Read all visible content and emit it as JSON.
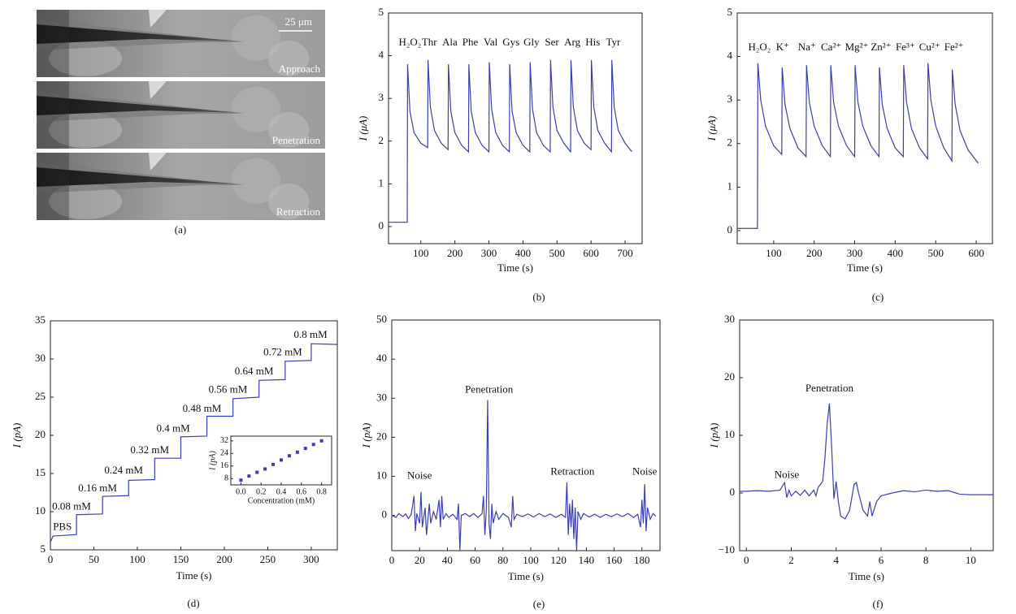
{
  "image_panel": {
    "labels": [
      "25 μm",
      "Approach",
      "Penetration",
      "Retraction"
    ],
    "caption": "(a)"
  },
  "chart_data": [
    {
      "type": "line",
      "caption": "(b)",
      "x_label": "Time (s)",
      "y_label": "I (μA)",
      "color": "#3a3fb0",
      "xlim": [
        5,
        750
      ],
      "ylim": [
        -0.4,
        5
      ],
      "xticks": [
        100,
        200,
        300,
        400,
        500,
        600,
        700
      ],
      "yticks": [
        0,
        1,
        2,
        3,
        4,
        5
      ],
      "x": [
        5,
        58,
        60,
        61,
        68,
        80,
        100,
        120,
        121,
        128,
        140,
        160,
        180,
        181,
        188,
        200,
        220,
        240,
        241,
        248,
        260,
        280,
        300,
        301,
        308,
        320,
        340,
        360,
        361,
        368,
        380,
        400,
        420,
        421,
        428,
        440,
        460,
        480,
        481,
        488,
        500,
        520,
        540,
        541,
        548,
        560,
        580,
        600,
        601,
        608,
        620,
        640,
        660,
        661,
        668,
        680,
        700,
        720
      ],
      "values": [
        0.1,
        0.1,
        0.1,
        3.8,
        2.7,
        2.2,
        1.95,
        1.85,
        3.9,
        2.8,
        2.25,
        1.95,
        1.8,
        3.8,
        2.7,
        2.2,
        1.9,
        1.75,
        3.8,
        2.7,
        2.2,
        1.9,
        1.75,
        3.85,
        2.75,
        2.2,
        1.9,
        1.75,
        3.8,
        2.7,
        2.2,
        1.9,
        1.75,
        3.85,
        2.75,
        2.2,
        1.9,
        1.75,
        3.9,
        2.8,
        2.25,
        1.95,
        1.75,
        3.9,
        2.8,
        2.25,
        1.95,
        1.8,
        3.9,
        2.8,
        2.25,
        1.95,
        1.75,
        3.9,
        2.8,
        2.25,
        1.95,
        1.75
      ],
      "annotations": [
        {
          "text": "H₂O₂",
          "x": 68,
          "y": 4.3
        },
        {
          "text": "Thr",
          "x": 125,
          "y": 4.3
        },
        {
          "text": "Ala",
          "x": 185,
          "y": 4.3
        },
        {
          "text": "Phe",
          "x": 245,
          "y": 4.3
        },
        {
          "text": "Val",
          "x": 305,
          "y": 4.3
        },
        {
          "text": "Gys",
          "x": 365,
          "y": 4.3
        },
        {
          "text": "Gly",
          "x": 425,
          "y": 4.3
        },
        {
          "text": "Ser",
          "x": 485,
          "y": 4.3
        },
        {
          "text": "Arg",
          "x": 545,
          "y": 4.3
        },
        {
          "text": "His",
          "x": 605,
          "y": 4.3
        },
        {
          "text": "Tyr",
          "x": 665,
          "y": 4.3
        }
      ]
    },
    {
      "type": "line",
      "caption": "(c)",
      "x_label": "Time (s)",
      "y_label": "I (μA)",
      "color": "#3a3fb0",
      "xlim": [
        10,
        640
      ],
      "ylim": [
        -0.3,
        5
      ],
      "xticks": [
        100,
        200,
        300,
        400,
        500,
        600
      ],
      "yticks": [
        0,
        1,
        2,
        3,
        4,
        5
      ],
      "x": [
        10,
        58,
        60,
        61,
        68,
        80,
        100,
        120,
        121,
        128,
        140,
        160,
        180,
        181,
        188,
        200,
        220,
        240,
        241,
        248,
        260,
        280,
        300,
        301,
        308,
        320,
        340,
        360,
        361,
        368,
        380,
        400,
        420,
        421,
        428,
        440,
        460,
        480,
        481,
        488,
        500,
        520,
        540,
        541,
        548,
        560,
        580,
        605
      ],
      "values": [
        0.05,
        0.05,
        0.05,
        3.85,
        3.0,
        2.4,
        1.95,
        1.75,
        3.75,
        2.9,
        2.35,
        1.9,
        1.7,
        3.8,
        2.95,
        2.4,
        1.95,
        1.7,
        3.8,
        2.95,
        2.4,
        1.95,
        1.7,
        3.8,
        2.95,
        2.4,
        1.95,
        1.7,
        3.75,
        2.9,
        2.35,
        1.9,
        1.7,
        3.8,
        2.95,
        2.35,
        1.9,
        1.65,
        3.85,
        3.0,
        2.4,
        1.9,
        1.6,
        3.7,
        2.9,
        2.3,
        1.85,
        1.55
      ],
      "annotations": [
        {
          "text": "H₂O₂",
          "x": 65,
          "y": 4.2
        },
        {
          "text": "K⁺",
          "x": 122,
          "y": 4.2
        },
        {
          "text": "Na⁺",
          "x": 182,
          "y": 4.2
        },
        {
          "text": "Ca²⁺",
          "x": 242,
          "y": 4.2
        },
        {
          "text": "Mg²⁺",
          "x": 305,
          "y": 4.2
        },
        {
          "text": "Zn²⁺",
          "x": 365,
          "y": 4.2
        },
        {
          "text": "Fe³⁺",
          "x": 425,
          "y": 4.2
        },
        {
          "text": "Cu²⁺",
          "x": 485,
          "y": 4.2
        },
        {
          "text": "Fe²⁺",
          "x": 545,
          "y": 4.2
        }
      ]
    },
    {
      "type": "line",
      "caption": "(d)",
      "x_label": "Time (s)",
      "y_label": "I (pA)",
      "color": "#3a3fb0",
      "xlim": [
        0,
        330
      ],
      "ylim": [
        5,
        35
      ],
      "xticks": [
        0,
        50,
        100,
        150,
        200,
        250,
        300
      ],
      "yticks": [
        5,
        10,
        15,
        20,
        25,
        30,
        35
      ],
      "x": [
        0,
        3,
        30,
        30,
        60,
        60,
        90,
        90,
        120,
        120,
        150,
        150,
        180,
        180,
        210,
        210,
        240,
        240,
        270,
        270,
        300,
        300,
        330
      ],
      "values": [
        6,
        6.8,
        7,
        9.6,
        9.7,
        12,
        12.1,
        14.1,
        14.2,
        17,
        17,
        19.8,
        19.9,
        22.5,
        22.5,
        24.8,
        25,
        27.2,
        27.3,
        29.7,
        29.8,
        32,
        31.9
      ],
      "annotations": [
        {
          "text": "PBS",
          "x": 3,
          "y": 7.9
        },
        {
          "text": "0.08 mM",
          "x": 2,
          "y": 10.6
        },
        {
          "text": "0.16 mM",
          "x": 32,
          "y": 13
        },
        {
          "text": "0.24 mM",
          "x": 62,
          "y": 15.3
        },
        {
          "text": "0.32 mM",
          "x": 92,
          "y": 18
        },
        {
          "text": "0.4 mM",
          "x": 122,
          "y": 20.8
        },
        {
          "text": "0.48 mM",
          "x": 152,
          "y": 23.4
        },
        {
          "text": "0.56 mM",
          "x": 182,
          "y": 25.9
        },
        {
          "text": "0.64 mM",
          "x": 212,
          "y": 28.3
        },
        {
          "text": "0.72 mM",
          "x": 245,
          "y": 30.8
        },
        {
          "text": "0.8 mM",
          "x": 280,
          "y": 33.1
        }
      ]
    },
    {
      "type": "scatter",
      "inset": true,
      "x_label": "Concentration (mM)",
      "y_label": "I (pA)",
      "color": "#3a3fb0",
      "xlim": [
        -0.1,
        0.9
      ],
      "ylim": [
        4,
        35
      ],
      "xticks": [
        {
          "value": 0,
          "label": "0.0"
        },
        {
          "value": 0.2,
          "label": "0.2"
        },
        {
          "value": 0.4,
          "label": "0.4"
        },
        {
          "value": 0.6,
          "label": "0.6"
        },
        {
          "value": 0.8,
          "label": "0.8"
        }
      ],
      "yticks": [
        8,
        16,
        24,
        32
      ],
      "x": [
        0,
        0.08,
        0.16,
        0.24,
        0.32,
        0.4,
        0.48,
        0.56,
        0.64,
        0.72,
        0.8
      ],
      "values": [
        7,
        9.6,
        12,
        14.1,
        17,
        19.8,
        22.5,
        24.8,
        27.2,
        29.7,
        32
      ]
    },
    {
      "type": "line",
      "caption": "(e)",
      "x_label": "Time (s)",
      "y_label": "I (pA)",
      "color": "#3a3fb0",
      "xlim": [
        0,
        193
      ],
      "ylim": [
        -9,
        50
      ],
      "xticks": [
        0,
        20,
        40,
        60,
        80,
        100,
        120,
        140,
        160,
        180
      ],
      "yticks": [
        0,
        10,
        20,
        30,
        40,
        50
      ],
      "x": [
        0,
        3,
        5,
        8,
        10,
        12,
        14,
        16,
        17,
        18,
        20,
        21,
        22,
        24,
        25,
        27,
        28,
        30,
        32,
        34,
        35,
        36,
        37,
        39,
        41,
        44,
        47,
        48,
        49,
        50,
        53,
        56,
        59,
        62,
        65,
        66,
        67,
        68,
        69,
        70,
        71,
        72,
        73,
        75,
        77,
        80,
        84,
        86,
        87,
        88,
        90,
        94,
        98,
        102,
        106,
        110,
        114,
        118,
        122,
        125,
        126,
        127,
        128,
        129,
        130,
        131,
        132,
        133,
        134,
        136,
        138,
        142,
        146,
        150,
        154,
        158,
        162,
        166,
        170,
        174,
        177,
        179,
        180,
        181,
        182,
        183,
        184,
        186,
        188,
        190
      ],
      "values": [
        0,
        -0.5,
        0.5,
        -0.3,
        0.4,
        -0.8,
        0.3,
        5,
        -4,
        0.5,
        -2,
        6,
        -3,
        2,
        -5,
        3,
        -2,
        1,
        -1,
        4,
        -3,
        5,
        -1,
        0.5,
        -0.5,
        0.3,
        -1,
        3,
        -9,
        0,
        0.5,
        -0.3,
        0.5,
        -0.5,
        0.5,
        5,
        -5,
        1,
        29.5,
        -2,
        -6,
        3,
        -2,
        1,
        -1,
        0.5,
        -0.5,
        -3,
        5,
        -1,
        0.3,
        -0.3,
        0.4,
        -0.4,
        0.5,
        -0.3,
        0.4,
        -0.5,
        0.3,
        -0.5,
        8.5,
        -5,
        3,
        -3,
        4,
        -6,
        2,
        -9,
        1,
        -1,
        0.5,
        -0.4,
        0.3,
        -0.5,
        0.3,
        -0.3,
        0.4,
        -0.3,
        0.5,
        -0.5,
        0.3,
        -3,
        4,
        -2,
        8,
        -4,
        2,
        -1,
        0.5,
        -0.2
      ],
      "annotations": [
        {
          "text": "Noise",
          "x": 20,
          "y": 10
        },
        {
          "text": "Penetration",
          "x": 70,
          "y": 32
        },
        {
          "text": "Retraction",
          "x": 130,
          "y": 11
        },
        {
          "text": "Noise",
          "x": 182,
          "y": 11
        }
      ]
    },
    {
      "type": "line",
      "caption": "(f)",
      "x_label": "Time (s)",
      "y_label": "I (pA)",
      "color": "#3a3fb0",
      "xlim": [
        -0.3,
        11
      ],
      "ylim": [
        -10,
        30
      ],
      "xticks": [
        0,
        2,
        4,
        6,
        8,
        10
      ],
      "yticks": [
        {
          "value": -10,
          "label": "−10"
        },
        0,
        10,
        20,
        30
      ],
      "x": [
        -0.3,
        0,
        0.5,
        1,
        1.5,
        1.7,
        1.8,
        1.9,
        2,
        2.2,
        2.4,
        2.6,
        2.8,
        3,
        3.1,
        3.2,
        3.4,
        3.5,
        3.6,
        3.7,
        3.8,
        3.9,
        4,
        4.1,
        4.2,
        4.4,
        4.6,
        4.8,
        4.9,
        5,
        5.2,
        5.4,
        5.5,
        5.6,
        5.8,
        6,
        6.5,
        7,
        7.5,
        8,
        8.5,
        9,
        9.5,
        10,
        10.5,
        11
      ],
      "values": [
        0.3,
        0.3,
        0.4,
        0.3,
        0.5,
        1.8,
        -0.8,
        0.5,
        -0.5,
        0.3,
        -0.4,
        0.5,
        -0.5,
        0.5,
        -0.5,
        1,
        2,
        6,
        12,
        15.5,
        8,
        -1,
        2,
        -1.5,
        -4,
        -4.5,
        -3,
        1.5,
        1.8,
        0,
        -3,
        -4,
        -1.5,
        -4,
        -1.5,
        -0.5,
        0,
        0.4,
        0.2,
        0.5,
        0.3,
        0.4,
        -0.2,
        -0.3,
        -0.3,
        -0.3
      ],
      "annotations": [
        {
          "text": "Noise",
          "x": 1.8,
          "y": 3
        },
        {
          "text": "Penetration",
          "x": 3.7,
          "y": 18
        }
      ]
    }
  ]
}
